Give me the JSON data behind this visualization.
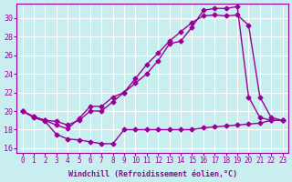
{
  "xlabel": "Windchill (Refroidissement éolien,°C)",
  "background_color": "#c8eef0",
  "line_color": "#990099",
  "xlim": [
    -0.5,
    23.5
  ],
  "ylim": [
    15.5,
    31.5
  ],
  "xticks": [
    0,
    1,
    2,
    3,
    4,
    5,
    6,
    7,
    8,
    9,
    10,
    11,
    12,
    13,
    14,
    15,
    16,
    17,
    18,
    19,
    20,
    21,
    22,
    23
  ],
  "yticks": [
    16,
    18,
    20,
    22,
    24,
    26,
    28,
    30
  ],
  "series1_x": [
    0,
    1,
    2,
    3,
    4,
    5,
    6,
    7,
    8,
    9,
    10,
    11,
    12,
    13,
    14,
    15,
    16,
    17,
    18,
    19,
    20,
    21,
    22,
    23
  ],
  "series1_y": [
    20.0,
    19.4,
    19.0,
    18.5,
    18.1,
    19.2,
    20.5,
    20.5,
    21.5,
    22.0,
    23.0,
    24.0,
    25.4,
    27.2,
    27.5,
    29.0,
    30.8,
    31.0,
    31.0,
    31.2,
    21.5,
    19.3,
    19.0,
    19.0
  ],
  "series2_x": [
    0,
    1,
    2,
    3,
    4,
    5,
    6,
    7,
    8,
    9,
    10,
    11,
    12,
    13,
    14,
    15,
    16,
    17,
    18,
    19,
    20,
    21,
    22,
    23
  ],
  "series2_y": [
    20.0,
    19.4,
    19.0,
    18.9,
    18.5,
    19.0,
    20.0,
    20.0,
    21.0,
    22.0,
    23.5,
    25.0,
    26.2,
    27.5,
    28.5,
    29.5,
    30.2,
    30.3,
    30.2,
    30.3,
    29.2,
    21.5,
    19.3,
    19.0
  ],
  "series3_x": [
    0,
    1,
    2,
    3,
    4,
    5,
    6,
    7,
    8,
    9,
    10,
    11,
    12,
    13,
    14,
    15,
    16,
    17,
    18,
    19,
    20,
    21,
    22,
    23
  ],
  "series3_y": [
    20.0,
    19.3,
    18.9,
    17.5,
    17.0,
    16.9,
    16.7,
    16.5,
    16.5,
    18.0,
    18.0,
    18.0,
    18.0,
    18.0,
    18.0,
    18.0,
    18.2,
    18.3,
    18.4,
    18.5,
    18.6,
    18.7,
    19.0,
    19.0
  ],
  "marker": "D",
  "markersize": 2.5,
  "linewidth": 1.0
}
